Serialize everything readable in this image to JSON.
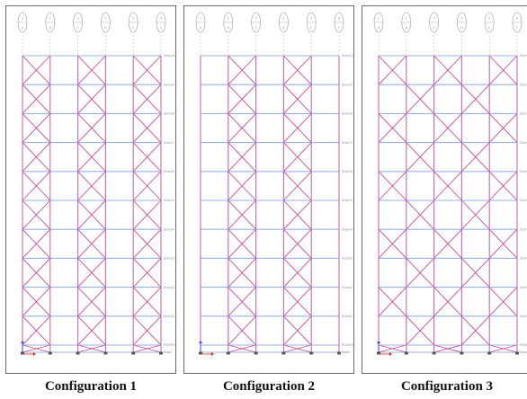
{
  "figure": {
    "colors": {
      "background": "#ffffff",
      "panel_border": "#6b6b6b",
      "beam": "#9ab0de",
      "column": "#c26bb0",
      "brace": "#c24c97",
      "gridline": "#b5b5b5",
      "story_label": "#8a8a8a",
      "base_support": "#555555",
      "axis_x": "#d62828",
      "axis_z": "#2c48c8"
    },
    "grid_labels": [
      "1",
      "2",
      "3",
      "4",
      "5",
      "6"
    ],
    "grid_sublabels": [
      "A",
      "B",
      "C",
      "D",
      "E",
      "F"
    ],
    "story_labels": [
      "Story10",
      "Story9",
      "Story8",
      "Story7",
      "Story6",
      "Story5",
      "Story4",
      "Story3",
      "Story2",
      "Story1",
      "PLINTH",
      "Base"
    ],
    "panels": [
      {
        "caption": "Configuration 1",
        "bracing_pattern": "X-braces in bays 1, 3 and 5 over all stories",
        "braced_bays_by_story": [
          [
            0,
            2,
            4
          ],
          [
            0,
            2,
            4
          ],
          [
            0,
            2,
            4
          ],
          [
            0,
            2,
            4
          ],
          [
            0,
            2,
            4
          ],
          [
            0,
            2,
            4
          ],
          [
            0,
            2,
            4
          ],
          [
            0,
            2,
            4
          ],
          [
            0,
            2,
            4
          ],
          [
            0,
            2,
            4
          ],
          [
            0,
            2,
            4
          ]
        ]
      },
      {
        "caption": "Configuration 2",
        "bracing_pattern": "X-braces in bays 2 and 4 over all stories",
        "braced_bays_by_story": [
          [
            1,
            3
          ],
          [
            1,
            3
          ],
          [
            1,
            3
          ],
          [
            1,
            3
          ],
          [
            1,
            3
          ],
          [
            1,
            3
          ],
          [
            1,
            3
          ],
          [
            1,
            3
          ],
          [
            1,
            3
          ],
          [
            1,
            3
          ],
          [
            1,
            3
          ]
        ]
      },
      {
        "caption": "Configuration 3",
        "bracing_pattern": "X-braces in a staggered checkerboard arrangement",
        "braced_bays_by_story": [
          [
            0,
            2,
            4
          ],
          [
            1,
            3
          ],
          [
            0,
            2,
            4
          ],
          [
            1,
            3
          ],
          [
            0,
            2,
            4
          ],
          [
            1,
            3
          ],
          [
            0,
            2,
            4
          ],
          [
            1,
            3
          ],
          [
            0,
            2,
            4
          ],
          [
            1,
            3
          ],
          [
            0,
            2,
            4
          ]
        ]
      }
    ]
  }
}
